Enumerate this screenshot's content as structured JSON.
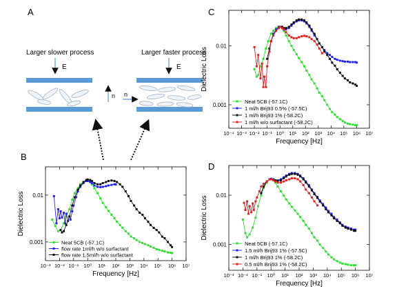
{
  "panel_letters": {
    "A": "A",
    "B": "B",
    "C": "C",
    "D": "D"
  },
  "schematic": {
    "left_title": "Larger slower process",
    "right_title": "Larger faster process",
    "field_label": "E",
    "director_label": "n"
  },
  "colors": {
    "green": "#33dd33",
    "blue": "#2222ee",
    "black": "#111111",
    "red": "#dd2222",
    "plate": "#5b9bd5"
  },
  "chart_data": [
    {
      "id": "B",
      "type": "line",
      "xlabel": "Frequency [Hz]",
      "ylabel": "Dielectric Loss",
      "xscale": "log",
      "yscale": "log",
      "xlim": [
        0.001,
        10000000
      ],
      "ylim": [
        0.0004,
        0.04
      ],
      "xticks": [
        "10⁻³",
        "10⁻²",
        "10⁻¹",
        "10⁰",
        "10¹",
        "10²",
        "10³",
        "10⁴",
        "10⁵",
        "10⁶",
        "10⁷"
      ],
      "yticks": [
        {
          "v": 0.01,
          "label": "0.01"
        },
        {
          "v": 0.001,
          "label": "0.001"
        }
      ],
      "legend_position": "bottom-left",
      "series": [
        {
          "name": "Neat 5CB (-57.1C)",
          "color": "#33dd33",
          "x": [
            0.003,
            0.005,
            0.008,
            0.012,
            0.02,
            0.03,
            0.05,
            0.08,
            0.12,
            0.2,
            0.3,
            0.5,
            0.8,
            1,
            1.5,
            2,
            3,
            5,
            8,
            12,
            20,
            30,
            50,
            80,
            120,
            200,
            300,
            500,
            800,
            1200,
            2000,
            3000,
            5000,
            8000,
            12000,
            20000,
            30000,
            50000,
            80000,
            120000,
            200000,
            300000,
            500000,
            800000,
            1000000
          ],
          "y": [
            0.003,
            0.0022,
            0.0017,
            0.0018,
            0.0025,
            0.0035,
            0.005,
            0.008,
            0.011,
            0.014,
            0.017,
            0.019,
            0.02,
            0.02,
            0.019,
            0.017,
            0.014,
            0.011,
            0.0085,
            0.0068,
            0.0055,
            0.0046,
            0.0038,
            0.0032,
            0.0027,
            0.0023,
            0.002,
            0.0017,
            0.0015,
            0.0013,
            0.0012,
            0.0011,
            0.001,
            0.00095,
            0.0009,
            0.00085,
            0.0008,
            0.00075,
            0.0007,
            0.00068,
            0.00065,
            0.00063,
            0.0006,
            0.00059,
            0.00058
          ]
        },
        {
          "name": "flow rate 1ml/h w/o surfactant",
          "color": "#2222ee",
          "x": [
            0.004,
            0.006,
            0.008,
            0.01,
            0.012,
            0.015,
            0.02,
            0.025,
            0.03,
            0.04,
            0.05,
            0.06,
            0.08,
            0.1,
            0.15,
            0.2,
            0.3,
            0.5,
            0.8,
            1,
            1.5,
            2,
            3,
            5,
            8,
            12,
            20,
            30,
            50,
            80,
            100
          ],
          "y": [
            0.0095,
            0.0025,
            0.005,
            0.0032,
            0.0045,
            0.0033,
            0.0042,
            0.0025,
            0.004,
            0.0028,
            0.0035,
            0.003,
            0.0045,
            0.006,
            0.009,
            0.012,
            0.015,
            0.018,
            0.02,
            0.02,
            0.019,
            0.018,
            0.016,
            0.015,
            0.0148,
            0.015,
            0.0155,
            0.016,
            0.0165,
            0.017,
            0.0168
          ]
        },
        {
          "name": "flow rate 1.5ml/h w/o surfactant",
          "color": "#111111",
          "x": [
            0.012,
            0.015,
            0.02,
            0.03,
            0.05,
            0.08,
            0.12,
            0.2,
            0.3,
            0.5,
            0.8,
            1,
            1.5,
            2,
            3,
            5,
            8,
            12,
            20,
            30,
            50,
            80,
            120,
            200,
            300,
            500,
            800,
            1200,
            2000,
            3000,
            5000,
            8000,
            12000,
            20000,
            30000,
            50000,
            80000,
            120000,
            200000,
            300000,
            500000,
            800000,
            1000000
          ],
          "y": [
            0.0018,
            0.0016,
            0.0017,
            0.0023,
            0.0035,
            0.006,
            0.009,
            0.013,
            0.016,
            0.019,
            0.021,
            0.0215,
            0.021,
            0.02,
            0.018,
            0.017,
            0.017,
            0.018,
            0.019,
            0.02,
            0.0205,
            0.02,
            0.019,
            0.017,
            0.015,
            0.012,
            0.0095,
            0.0075,
            0.006,
            0.005,
            0.0042,
            0.0038,
            0.0032,
            0.0027,
            0.0023,
            0.002,
            0.0018,
            0.0016,
            0.0013,
            0.0012,
            0.001,
            0.00085,
            0.00078
          ]
        }
      ]
    },
    {
      "id": "C",
      "type": "line",
      "xlabel": "Frequency [Hz]",
      "ylabel": "Dielectric Loss",
      "xscale": "log",
      "yscale": "log",
      "xlim": [
        0.0001,
        10000000
      ],
      "ylim": [
        0.0004,
        0.04
      ],
      "xticks": [
        "10⁻⁴",
        "10⁻³",
        "10⁻²",
        "10⁻¹",
        "10⁰",
        "10¹",
        "10²",
        "10³",
        "10⁴",
        "10⁵",
        "10⁶",
        "10⁷"
      ],
      "yticks": [
        {
          "v": 0.01,
          "label": "0.01"
        },
        {
          "v": 0.001,
          "label": "0.001"
        }
      ],
      "legend_position": "bottom-left",
      "series": [
        {
          "name": "Neat 5CB (-57.1C)",
          "color": "#33dd33",
          "x": [
            0.01,
            0.015,
            0.02,
            0.03,
            0.05,
            0.08,
            0.12,
            0.2,
            0.3,
            0.5,
            0.8,
            1,
            1.5,
            2,
            3,
            5,
            8,
            12,
            20,
            30,
            50,
            80,
            120,
            200,
            300,
            500,
            800,
            1200,
            2000,
            3000,
            5000,
            8000,
            12000,
            20000,
            30000,
            50000,
            80000,
            120000,
            200000,
            300000,
            500000,
            800000,
            1000000
          ],
          "y": [
            0.004,
            0.003,
            0.0032,
            0.0045,
            0.006,
            0.009,
            0.012,
            0.016,
            0.018,
            0.02,
            0.021,
            0.021,
            0.02,
            0.018,
            0.015,
            0.012,
            0.01,
            0.0085,
            0.0072,
            0.0062,
            0.0053,
            0.0045,
            0.0038,
            0.0032,
            0.0027,
            0.0023,
            0.0019,
            0.0016,
            0.0014,
            0.0012,
            0.001,
            0.00085,
            0.00075,
            0.00068,
            0.00062,
            0.00057,
            0.00053,
            0.0005,
            0.00048,
            0.00047,
            0.00046,
            0.00045,
            0.00045
          ]
        },
        {
          "name": "1 ml/h Brij93 0.5% (-57.5C)",
          "color": "#2222ee",
          "x": [
            0.15,
            0.2,
            0.3,
            0.5,
            0.8,
            1,
            1.5,
            2,
            3,
            5,
            8,
            12,
            20,
            30,
            50,
            80,
            120,
            200,
            300,
            500,
            800,
            1200,
            2000,
            3000,
            5000,
            8000,
            12000,
            20000,
            30000,
            50000,
            80000,
            120000,
            200000,
            300000,
            500000,
            800000,
            1000000
          ],
          "y": [
            0.008,
            0.012,
            0.016,
            0.019,
            0.021,
            0.021,
            0.02,
            0.019,
            0.019,
            0.02,
            0.022,
            0.024,
            0.026,
            0.027,
            0.027,
            0.026,
            0.024,
            0.021,
            0.018,
            0.015,
            0.013,
            0.011,
            0.0095,
            0.0085,
            0.0075,
            0.007,
            0.0065,
            0.006,
            0.0058,
            0.0056,
            0.0055,
            0.0054,
            0.0054,
            0.0053,
            0.0053,
            0.0053,
            0.0052
          ]
        },
        {
          "name": "1 ml/h Brij93 1% (-58.2C)",
          "color": "#111111",
          "x": [
            0.1,
            0.15,
            0.2,
            0.3,
            0.5,
            0.8,
            1,
            1.5,
            2,
            3,
            5,
            8,
            12,
            20,
            30,
            50,
            80,
            120,
            200,
            300,
            500,
            800,
            1200,
            2000,
            3000,
            5000,
            8000,
            12000,
            20000,
            30000,
            50000,
            80000,
            120000,
            200000,
            300000,
            500000,
            800000,
            1000000
          ],
          "y": [
            0.006,
            0.009,
            0.012,
            0.015,
            0.018,
            0.02,
            0.021,
            0.021,
            0.02,
            0.02,
            0.021,
            0.023,
            0.025,
            0.027,
            0.028,
            0.028,
            0.027,
            0.025,
            0.022,
            0.019,
            0.016,
            0.013,
            0.011,
            0.0095,
            0.008,
            0.007,
            0.006,
            0.0052,
            0.0046,
            0.004,
            0.0035,
            0.0031,
            0.0028,
            0.0026,
            0.0024,
            0.0023,
            0.0022,
            0.0021
          ]
        },
        {
          "name": "1 ml/h w/o surfactant (-58.2C)",
          "color": "#dd2222",
          "x": [
            0.01,
            0.015,
            0.02,
            0.03,
            0.04,
            0.05,
            0.06,
            0.08,
            0.1,
            0.15,
            0.2,
            0.3,
            0.5,
            0.8,
            1,
            1.5,
            2,
            3,
            5,
            8,
            12,
            20,
            30,
            50,
            80,
            120,
            200,
            300,
            500,
            800,
            1200,
            2000
          ],
          "y": [
            0.0095,
            0.0045,
            0.007,
            0.0028,
            0.005,
            0.002,
            0.003,
            0.002,
            0.0045,
            0.008,
            0.012,
            0.015,
            0.018,
            0.02,
            0.021,
            0.02,
            0.019,
            0.017,
            0.015,
            0.014,
            0.0135,
            0.0135,
            0.014,
            0.0145,
            0.0148,
            0.0145,
            0.014,
            0.013,
            0.012,
            0.0105,
            0.009,
            0.0075
          ]
        }
      ]
    },
    {
      "id": "D",
      "type": "line",
      "xlabel": "Frequency [Hz]",
      "ylabel": "Dielectric Loss",
      "xscale": "log",
      "yscale": "log",
      "xlim": [
        0.001,
        10000000
      ],
      "ylim": [
        0.0003,
        0.04
      ],
      "xticks": [
        "10⁻³",
        "10⁻²",
        "10⁻¹",
        "10⁰",
        "10¹",
        "10²",
        "10³",
        "10⁴",
        "10⁵",
        "10⁶",
        "10⁷"
      ],
      "yticks": [
        {
          "v": 0.01,
          "label": "0.01"
        },
        {
          "v": 0.001,
          "label": "0.001"
        }
      ],
      "legend_position": "bottom-left",
      "series": [
        {
          "name": "Neat 5CB (-57.1C)",
          "color": "#33dd33",
          "x": [
            0.01,
            0.015,
            0.02,
            0.03,
            0.05,
            0.08,
            0.12,
            0.2,
            0.3,
            0.5,
            0.8,
            1,
            1.5,
            2,
            3,
            5,
            8,
            12,
            20,
            30,
            50,
            80,
            120,
            200,
            300,
            500,
            800,
            1200,
            2000,
            3000,
            5000,
            8000,
            12000,
            20000,
            30000,
            50000,
            80000,
            120000,
            200000,
            300000,
            500000,
            800000,
            1000000
          ],
          "y": [
            0.0032,
            0.0017,
            0.0014,
            0.0016,
            0.0022,
            0.0035,
            0.006,
            0.01,
            0.014,
            0.018,
            0.021,
            0.0215,
            0.0205,
            0.018,
            0.015,
            0.012,
            0.0098,
            0.0082,
            0.0068,
            0.0058,
            0.0049,
            0.0042,
            0.0036,
            0.003,
            0.0025,
            0.0021,
            0.0017,
            0.0014,
            0.0012,
            0.001,
            0.00085,
            0.00072,
            0.00063,
            0.00055,
            0.0005,
            0.00046,
            0.00043,
            0.00041,
            0.0004,
            0.00039,
            0.00038,
            0.00038,
            0.00038
          ]
        },
        {
          "name": "1.5 ml/h Brij93 1% (-57.5C)",
          "color": "#2222ee",
          "x": [
            0.2,
            0.3,
            0.5,
            0.8,
            1,
            1.5,
            2,
            3,
            5,
            8,
            12,
            20,
            30,
            50,
            80,
            120,
            200,
            300,
            500,
            800,
            1200,
            2000,
            3000,
            5000,
            8000,
            12000,
            20000,
            30000,
            50000,
            80000,
            120000,
            200000,
            300000,
            500000,
            800000,
            1000000
          ],
          "y": [
            0.011,
            0.015,
            0.019,
            0.021,
            0.0215,
            0.021,
            0.02,
            0.02,
            0.021,
            0.023,
            0.025,
            0.027,
            0.028,
            0.028,
            0.027,
            0.025,
            0.022,
            0.019,
            0.016,
            0.013,
            0.011,
            0.0092,
            0.0078,
            0.0066,
            0.0056,
            0.0048,
            0.0042,
            0.0036,
            0.0032,
            0.0028,
            0.0025,
            0.0023,
            0.0022,
            0.0021,
            0.002,
            0.002
          ]
        },
        {
          "name": "1 ml/h Brij93 1% (-58.2C)",
          "color": "#111111",
          "x": [
            0.2,
            0.3,
            0.5,
            0.8,
            1,
            1.5,
            2,
            3,
            5,
            8,
            12,
            20,
            30,
            50,
            80,
            120,
            200,
            300,
            500,
            800,
            1200,
            2000,
            3000,
            5000,
            8000,
            12000,
            20000,
            30000,
            50000,
            80000,
            120000,
            200000,
            300000,
            500000,
            800000,
            1000000
          ],
          "y": [
            0.011,
            0.015,
            0.019,
            0.021,
            0.021,
            0.0205,
            0.02,
            0.0195,
            0.02,
            0.022,
            0.024,
            0.026,
            0.027,
            0.027,
            0.026,
            0.024,
            0.021,
            0.018,
            0.015,
            0.0125,
            0.0105,
            0.0088,
            0.0074,
            0.0062,
            0.0052,
            0.0045,
            0.0039,
            0.0034,
            0.003,
            0.0027,
            0.0024,
            0.0022,
            0.0021,
            0.002,
            0.0019,
            0.0019
          ]
        },
        {
          "name": "0.5 ml/h Brij93 1% (-58.2C)",
          "color": "#dd2222",
          "x": [
            0.012,
            0.015,
            0.02,
            0.025,
            0.03,
            0.04,
            0.05,
            0.06,
            0.08,
            0.1,
            0.15,
            0.2,
            0.3,
            0.5,
            0.8,
            1,
            1.5,
            2,
            3,
            5,
            8,
            12,
            20,
            30,
            50,
            80,
            120,
            200,
            300,
            500,
            800,
            1200,
            2000
          ],
          "y": [
            0.007,
            0.005,
            0.0075,
            0.0042,
            0.006,
            0.0045,
            0.0068,
            0.005,
            0.0075,
            0.009,
            0.012,
            0.015,
            0.017,
            0.019,
            0.021,
            0.021,
            0.02,
            0.019,
            0.018,
            0.018,
            0.019,
            0.02,
            0.021,
            0.022,
            0.022,
            0.021,
            0.019,
            0.016,
            0.013,
            0.011,
            0.009,
            0.0075,
            0.0062
          ]
        }
      ]
    }
  ]
}
